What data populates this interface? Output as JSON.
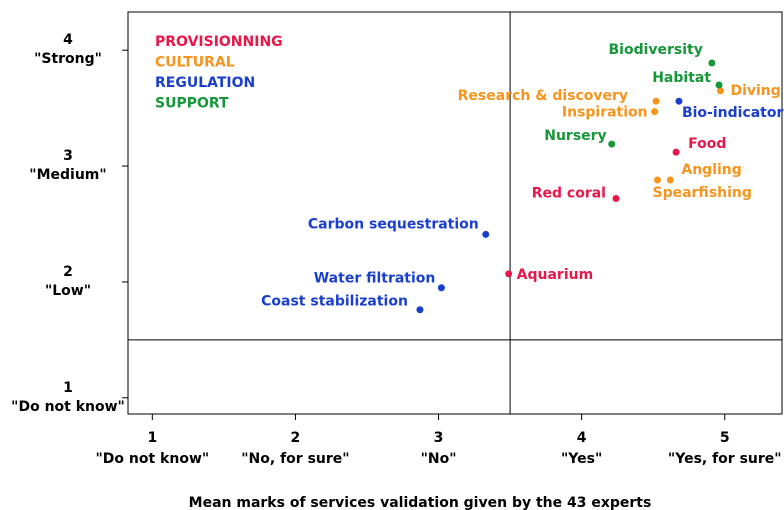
{
  "chart_data": {
    "type": "scatter",
    "xlabel": "Mean marks of services validation given by the 43 experts",
    "xlim": [
      0.83,
      5.4
    ],
    "ylim": [
      0.86,
      4.33
    ],
    "xticks": [
      1,
      2,
      3,
      4,
      5
    ],
    "xtick_sublabels": [
      "\"Do not know\"",
      "\"No, for sure\"",
      "\"No\"",
      "\"Yes\"",
      "\"Yes, for sure\""
    ],
    "yticks": [
      1,
      2,
      3,
      4
    ],
    "ytick_sublabels": [
      "\"Do not know\"",
      "\"Low\"",
      "\"Medium\"",
      "\"Strong\""
    ],
    "reference_x": 3.5,
    "reference_y": 1.5,
    "series": [
      {
        "name": "PROVISIONNING",
        "color": "#e8174a",
        "labels": [
          "Food",
          "Red coral",
          "Aquarium"
        ],
        "x": [
          4.66,
          4.24,
          3.49
        ],
        "y": [
          3.12,
          2.72,
          2.07
        ]
      },
      {
        "name": "CULTURAL",
        "color": "#f7941d",
        "labels": [
          "Diving",
          "Research & discovery",
          "Inspiration",
          "Angling",
          "Spearfishing"
        ],
        "x": [
          4.97,
          4.52,
          4.51,
          4.62,
          4.53
        ],
        "y": [
          3.65,
          3.56,
          3.47,
          2.88,
          2.88
        ]
      },
      {
        "name": "REGULATION",
        "color": "#1a3fcc",
        "labels": [
          "Bio-indicator",
          "Carbon sequestration",
          "Water filtration",
          "Coast stabilization"
        ],
        "x": [
          4.68,
          3.33,
          3.02,
          2.87
        ],
        "y": [
          3.56,
          2.41,
          1.95,
          1.76
        ]
      },
      {
        "name": "SUPPORT",
        "color": "#16973a",
        "labels": [
          "Biodiversity",
          "Habitat",
          "Nursery"
        ],
        "x": [
          4.91,
          4.96,
          4.21
        ],
        "y": [
          3.89,
          3.7,
          3.19
        ]
      }
    ]
  }
}
